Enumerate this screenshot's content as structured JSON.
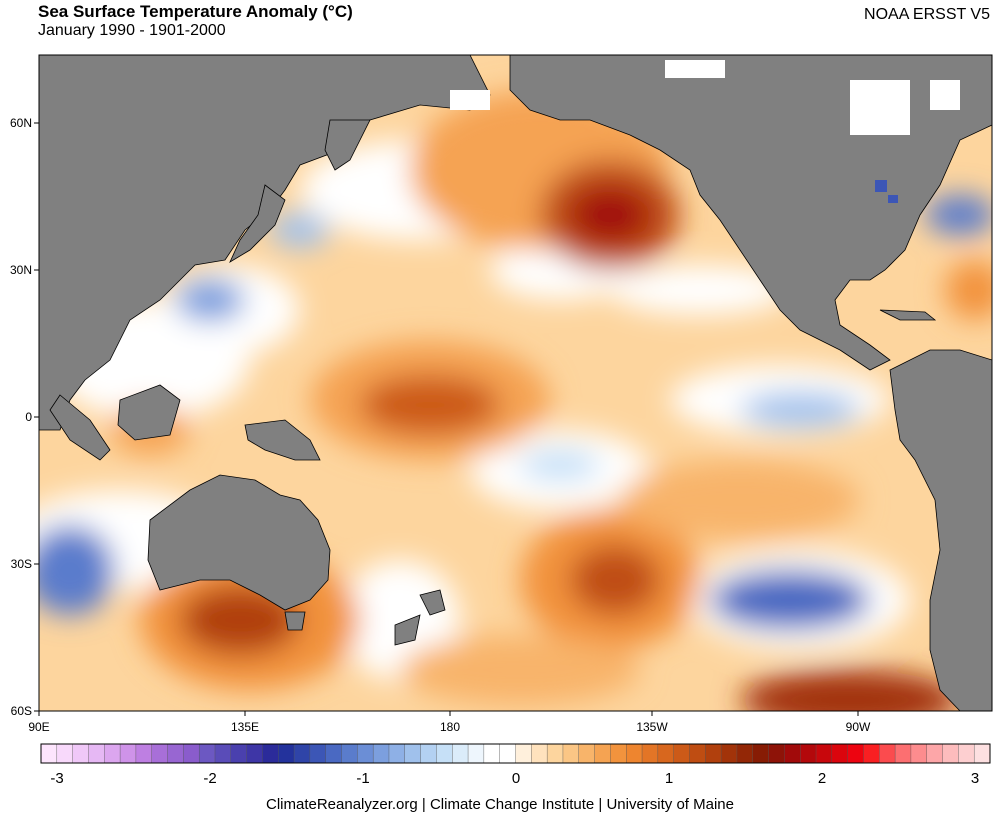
{
  "header": {
    "title": "Sea Surface Temperature Anomaly (°C)",
    "subtitle": "January 1990 - 1901-2000",
    "source": "NOAA ERSST V5"
  },
  "map": {
    "lat_labels": [
      "60N",
      "30N",
      "0",
      "30S",
      "60S"
    ],
    "lon_labels": [
      "90E",
      "135E",
      "180",
      "135W",
      "90W"
    ],
    "land_color": "#808080",
    "ocean_neutral_color": "#ffffff"
  },
  "colorbar": {
    "min": -3,
    "max": 3,
    "step": 0.1,
    "tick_labels": [
      "-3",
      "-2",
      "-1",
      "0",
      "1",
      "2",
      "3"
    ],
    "colors": [
      "#fde5fd",
      "#f8d9fb",
      "#f0c8f8",
      "#e6b8f4",
      "#dca6ef",
      "#cf93e9",
      "#be7fe2",
      "#a86fd8",
      "#9866d2",
      "#8a5ccc",
      "#6c58c2",
      "#5a4cb8",
      "#4a40ae",
      "#3e36a6",
      "#2b2b9a",
      "#23329c",
      "#2f44a8",
      "#3c56b6",
      "#4a69c2",
      "#5a7ccc",
      "#6b8ed6",
      "#7c9fde",
      "#8eb0e6",
      "#a0c1ec",
      "#b3d1f2",
      "#c6e0f7",
      "#dbecfa",
      "#eef6fd",
      "#ffffff",
      "#ffffff",
      "#fff0dc",
      "#ffe2bd",
      "#fdd59e",
      "#fbc685",
      "#f8b46a",
      "#f5a352",
      "#f2933d",
      "#ee852f",
      "#e37526",
      "#d8671e",
      "#cc5a18",
      "#bf4d12",
      "#b1400d",
      "#a23309",
      "#932706",
      "#871c04",
      "#8e1308",
      "#a10a0a",
      "#b3080b",
      "#c8070c",
      "#db050d",
      "#ed0410",
      "#f91f22",
      "#fb4b4e",
      "#fc6f71",
      "#fd8c8e",
      "#fda6a8",
      "#fdbcbd",
      "#fdcfd0",
      "#fde0e1"
    ]
  },
  "footer": {
    "credit": "ClimateReanalyzer.org | Climate Change Institute | University of Maine"
  }
}
